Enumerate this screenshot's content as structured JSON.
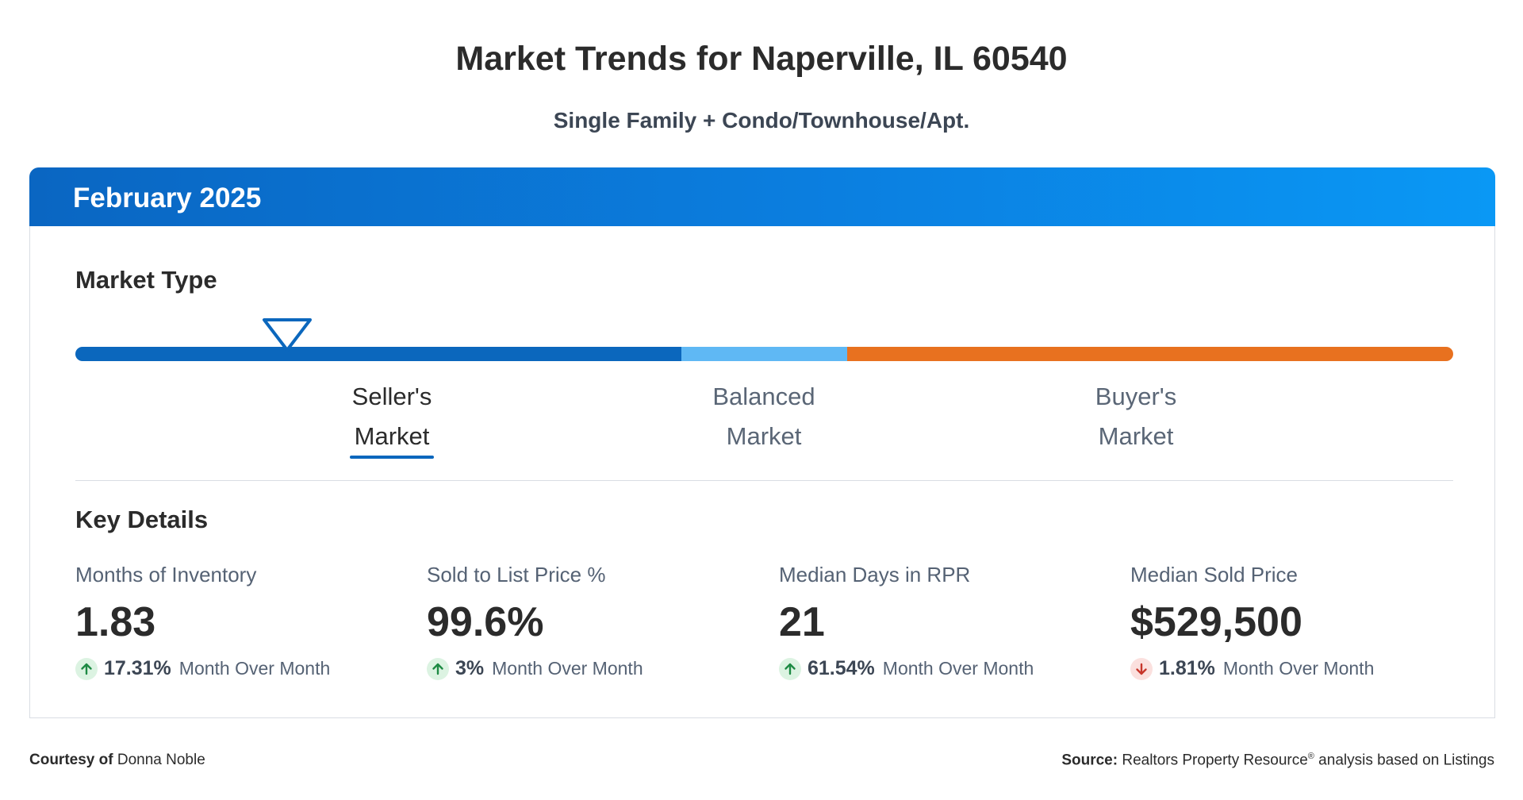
{
  "header": {
    "title": "Market Trends for Naperville, IL 60540",
    "subtitle": "Single Family + Condo/Townhouse/Apt."
  },
  "card": {
    "period": "February 2025",
    "market_type": {
      "title": "Market Type",
      "indicator_position_fraction": 0.154,
      "segments": [
        {
          "key": "seller",
          "fraction": 0.44,
          "color": "#0b67bd"
        },
        {
          "key": "balanced",
          "fraction": 0.12,
          "color": "#5fb8f4"
        },
        {
          "key": "buyer",
          "fraction": 0.44,
          "color": "#e8711f"
        }
      ],
      "labels": {
        "seller": {
          "line1": "Seller's",
          "line2": "Market",
          "active": true
        },
        "balanced": {
          "line1": "Balanced",
          "line2": "Market",
          "active": false
        },
        "buyer": {
          "line1": "Buyer's",
          "line2": "Market",
          "active": false
        }
      }
    },
    "key_details": {
      "title": "Key Details",
      "stats": [
        {
          "label": "Months of Inventory",
          "value": "1.83",
          "direction": "up",
          "change": "17.31%",
          "change_text": "Month Over Month"
        },
        {
          "label": "Sold to List Price %",
          "value": "99.6%",
          "direction": "up",
          "change": "3%",
          "change_text": "Month Over Month"
        },
        {
          "label": "Median Days in RPR",
          "value": "21",
          "direction": "up",
          "change": "61.54%",
          "change_text": "Month Over Month"
        },
        {
          "label": "Median Sold Price",
          "value": "$529,500",
          "direction": "down",
          "change": "1.81%",
          "change_text": "Month Over Month"
        }
      ]
    }
  },
  "footer": {
    "courtesy_label": "Courtesy of",
    "courtesy_name": "Donna Noble",
    "source_label": "Source:",
    "source_text_a": "Realtors Property Resource",
    "source_reg": "®",
    "source_text_b": " analysis based on Listings"
  },
  "colors": {
    "header_gradient_start": "#0a66c2",
    "header_gradient_end": "#0a98f5",
    "up_arrow": "#1e8a44",
    "down_arrow": "#c7362b"
  },
  "icons": {
    "marker": "triangle-down-outline-icon",
    "up": "arrow-up-icon",
    "down": "arrow-down-icon"
  }
}
